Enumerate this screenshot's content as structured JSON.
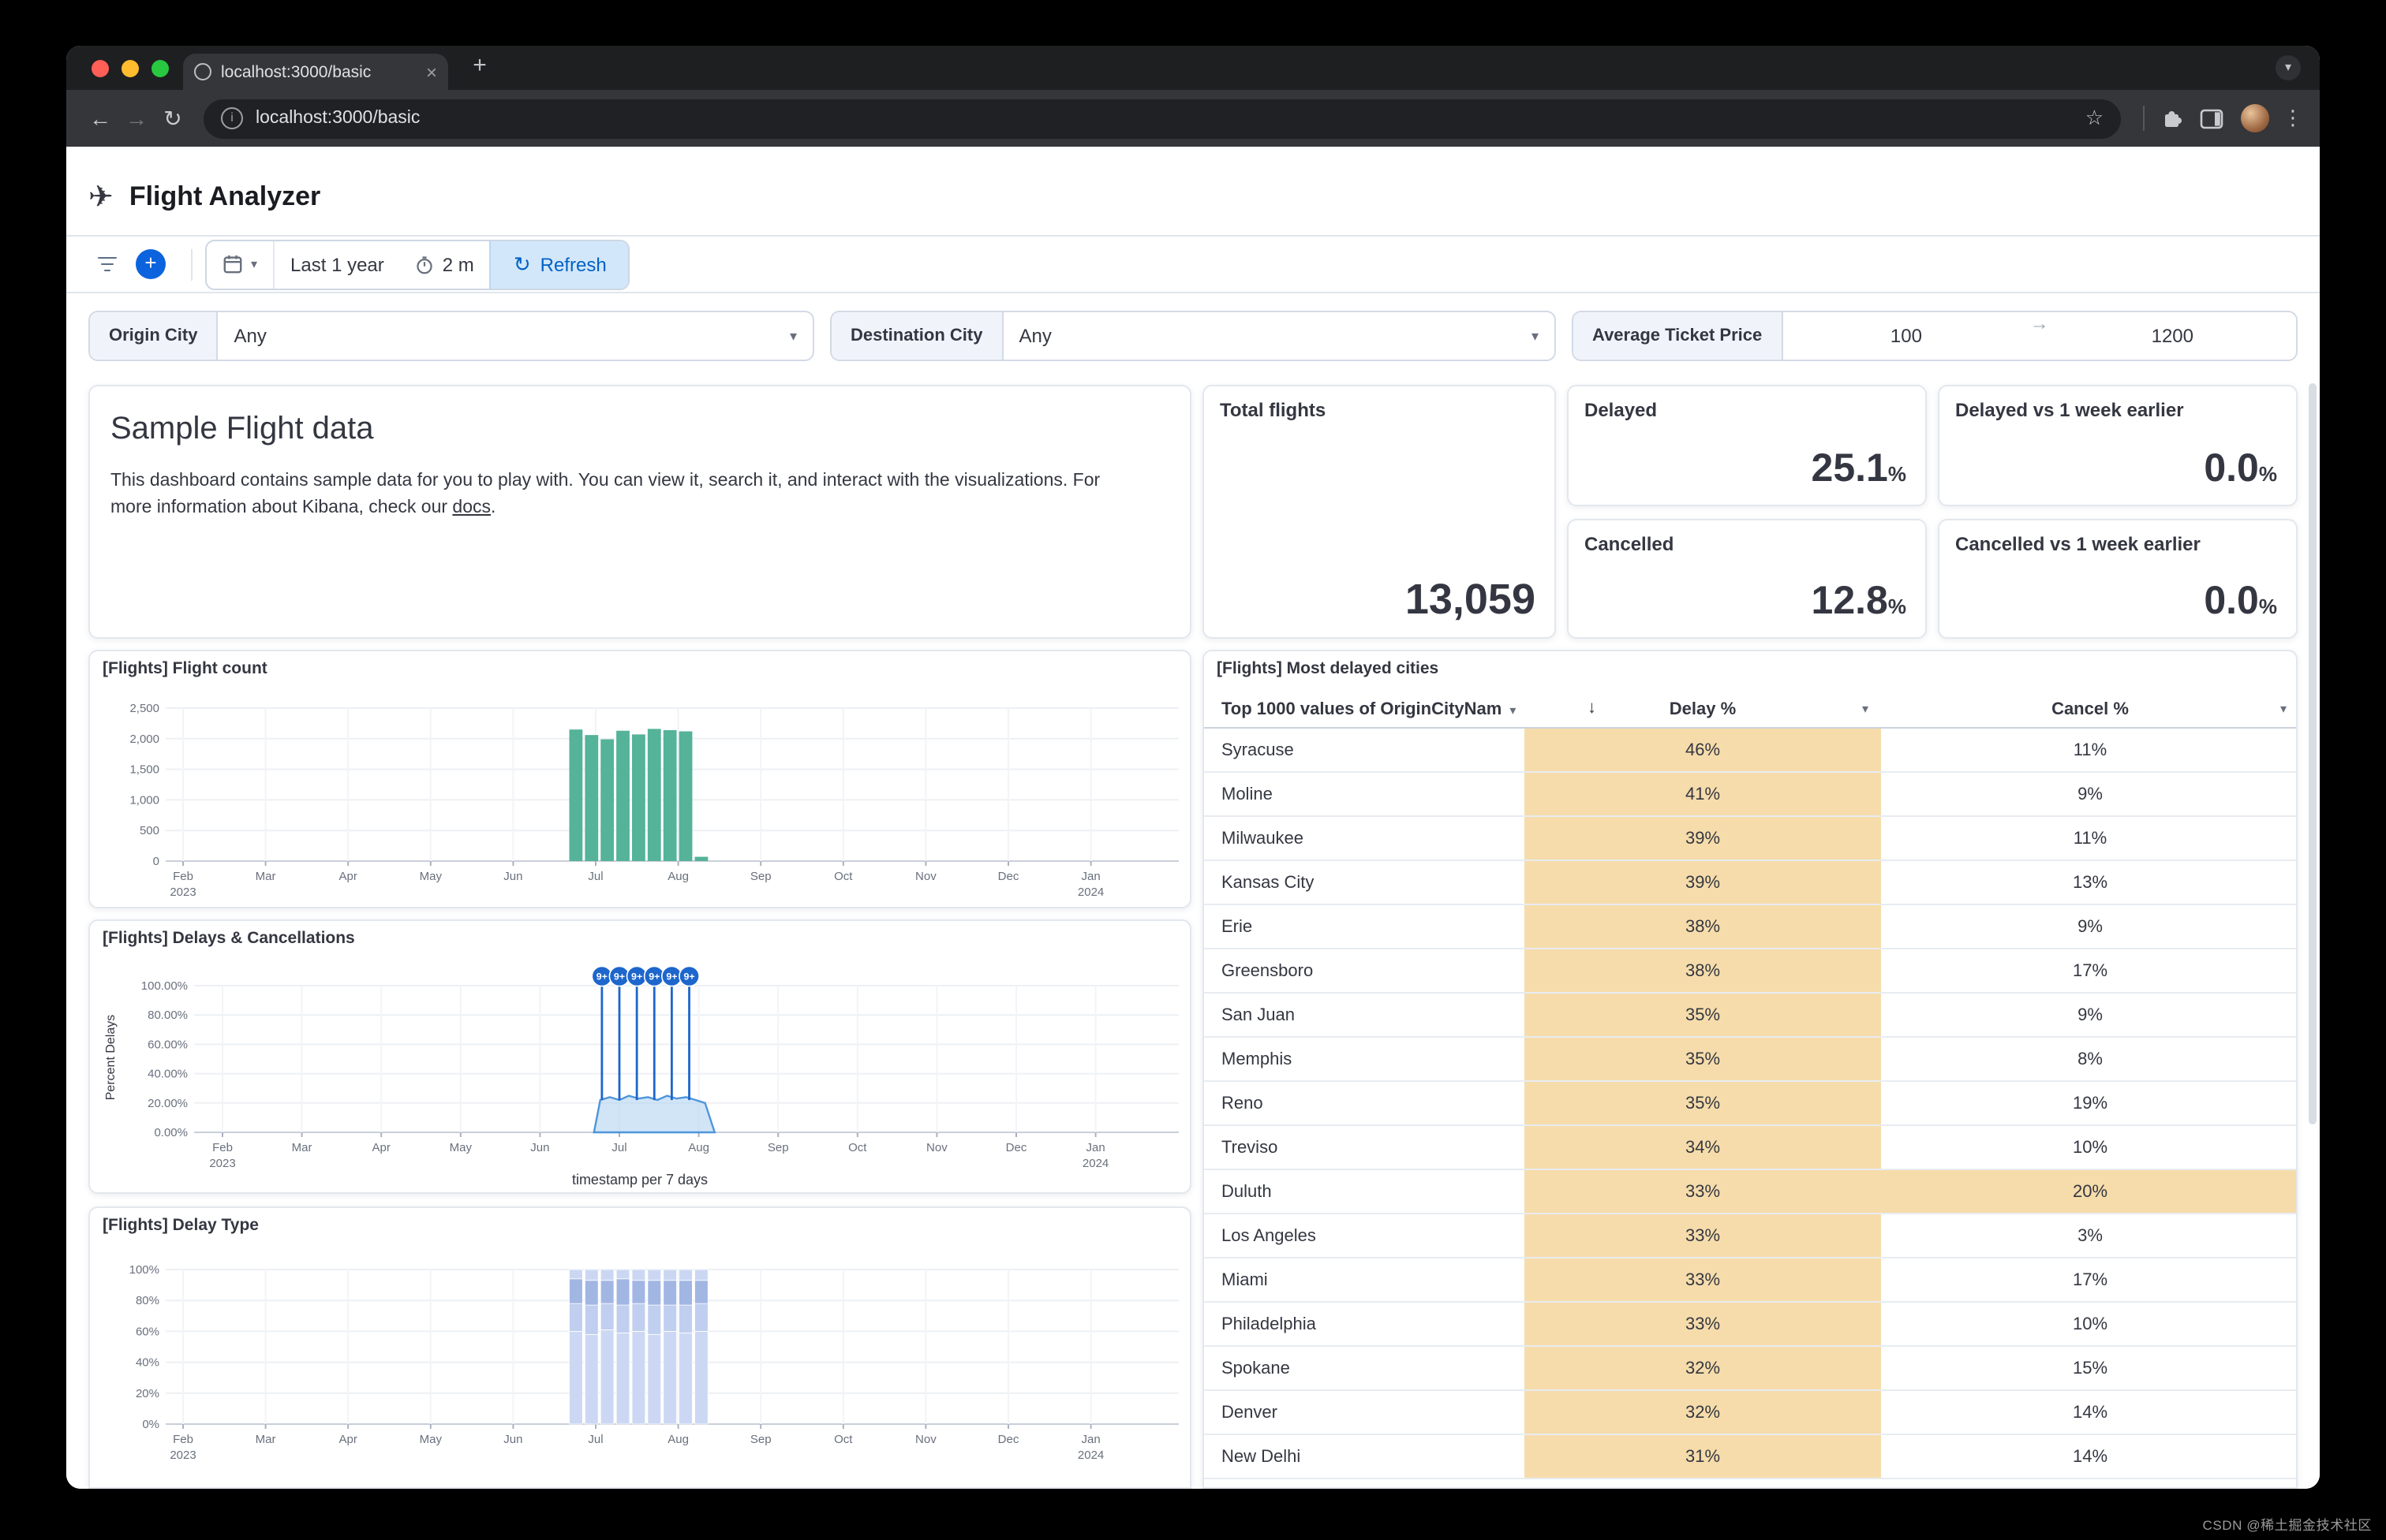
{
  "browser": {
    "tab_title": "localhost:3000/basic",
    "url": "localhost:3000/basic"
  },
  "icons": {
    "back": "←",
    "forward": "→",
    "reload": "↻",
    "star": "☆",
    "kebab": "⋮",
    "chevron_down": "▾",
    "plus": "+",
    "close": "×",
    "tab_search": "▾",
    "plane": "✈",
    "arrow_right": "→",
    "sort_down": "↓",
    "refresh_glyph": "↻",
    "info": "i"
  },
  "colors": {
    "accent_blue": "#0b64dd",
    "bar_green": "#54b399",
    "highlight_tan": "#f6dcab"
  },
  "header": {
    "title": "Flight Analyzer"
  },
  "querybar": {
    "date_range": "Last 1 year",
    "refresh_interval": "2 m",
    "refresh_label": "Refresh"
  },
  "filters": {
    "origin_label": "Origin City",
    "origin_value": "Any",
    "destination_label": "Destination City",
    "destination_value": "Any",
    "price_label": "Average Ticket Price",
    "price_min": "100",
    "price_max": "1200"
  },
  "intro": {
    "title": "Sample Flight data",
    "text_before_link": "This dashboard contains sample data for you to play with. You can view it, search it, and interact with the visualizations. For more information about Kibana, check our ",
    "link_text": "docs",
    "text_after_link": "."
  },
  "stats": {
    "total_label": "Total flights",
    "total_value": "13,059",
    "cards": [
      {
        "label": "Delayed",
        "value": "25.1",
        "suffix": "%"
      },
      {
        "label": "Delayed vs 1 week earlier",
        "value": "0.0",
        "suffix": "%"
      },
      {
        "label": "Cancelled",
        "value": "12.8",
        "suffix": "%"
      },
      {
        "label": "Cancelled vs 1 week earlier",
        "value": "0.0",
        "suffix": "%"
      }
    ]
  },
  "chart_data": [
    {
      "type": "bar",
      "title": "[Flights] Flight count",
      "x_tick_labels": [
        "Feb 2023",
        "Mar",
        "Apr",
        "May",
        "Jun",
        "Jul",
        "Aug",
        "Sep",
        "Oct",
        "Nov",
        "Dec",
        "Jan 2024"
      ],
      "ylim": [
        0,
        2500
      ],
      "y_ticks": [
        0,
        500,
        1000,
        1500,
        2000,
        2500
      ],
      "bar_color": "#54b399",
      "bars": [
        {
          "month": 4.76,
          "value": 2150
        },
        {
          "month": 4.95,
          "value": 2060
        },
        {
          "month": 5.14,
          "value": 1990
        },
        {
          "month": 5.33,
          "value": 2130
        },
        {
          "month": 5.52,
          "value": 2070
        },
        {
          "month": 5.71,
          "value": 2160
        },
        {
          "month": 5.9,
          "value": 2140
        },
        {
          "month": 6.09,
          "value": 2120
        },
        {
          "month": 6.28,
          "value": 70
        }
      ]
    },
    {
      "type": "area",
      "title": "[Flights] Delays & Cancellations",
      "ylabel": "Percent Delays",
      "xlabel": "timestamp per 7 days",
      "ylim": [
        0,
        100
      ],
      "y_tick_labels": [
        "0.00%",
        "20.00%",
        "40.00%",
        "60.00%",
        "80.00%",
        "100.00%"
      ],
      "x_tick_labels": [
        "Feb 2023",
        "Mar",
        "Apr",
        "May",
        "Jun",
        "Jul",
        "Aug",
        "Sep",
        "Oct",
        "Nov",
        "Dec",
        "Jan 2024"
      ],
      "area_fill": "#b4d4f1",
      "line_color": "#4f95da",
      "badge_color": "#1d66cc",
      "points": [
        {
          "month": 4.68,
          "value": 0
        },
        {
          "month": 4.76,
          "value": 22
        },
        {
          "month": 4.88,
          "value": 24
        },
        {
          "month": 5.0,
          "value": 22
        },
        {
          "month": 5.12,
          "value": 25
        },
        {
          "month": 5.24,
          "value": 23
        },
        {
          "month": 5.36,
          "value": 24
        },
        {
          "month": 5.48,
          "value": 22
        },
        {
          "month": 5.6,
          "value": 25
        },
        {
          "month": 5.72,
          "value": 23
        },
        {
          "month": 5.84,
          "value": 24
        },
        {
          "month": 5.96,
          "value": 22
        },
        {
          "month": 6.08,
          "value": 20
        },
        {
          "month": 6.2,
          "value": 0
        }
      ],
      "spikes": {
        "badge": "9+",
        "value": 100,
        "months": [
          4.78,
          5.0,
          5.22,
          5.44,
          5.66,
          5.88
        ]
      }
    },
    {
      "type": "stacked_bar",
      "title": "[Flights] Delay Type",
      "ylim": [
        0,
        100
      ],
      "y_tick_labels": [
        "0%",
        "20%",
        "40%",
        "60%",
        "80%",
        "100%"
      ],
      "x_tick_labels": [
        "Feb 2023",
        "Mar",
        "Apr",
        "May",
        "Jun",
        "Jul",
        "Aug",
        "Sep",
        "Oct",
        "Nov",
        "Dec",
        "Jan 2024"
      ],
      "colors": [
        "#ccd8f3",
        "#c0cfef",
        "#a2b6e3",
        "#cbd7f2"
      ],
      "bars": [
        {
          "month": 4.76,
          "segments": [
            60,
            18,
            16,
            6
          ]
        },
        {
          "month": 4.95,
          "segments": [
            58,
            19,
            16,
            7
          ]
        },
        {
          "month": 5.14,
          "segments": [
            61,
            17,
            15,
            7
          ]
        },
        {
          "month": 5.33,
          "segments": [
            59,
            18,
            17,
            6
          ]
        },
        {
          "month": 5.52,
          "segments": [
            60,
            18,
            15,
            7
          ]
        },
        {
          "month": 5.71,
          "segments": [
            58,
            19,
            16,
            7
          ]
        },
        {
          "month": 5.9,
          "segments": [
            60,
            17,
            16,
            7
          ]
        },
        {
          "month": 6.09,
          "segments": [
            59,
            18,
            16,
            7
          ]
        },
        {
          "month": 6.28,
          "segments": [
            60,
            18,
            15,
            7
          ]
        }
      ]
    },
    {
      "type": "table",
      "title": "[Flights] Most delayed cities",
      "columns": [
        "Top 1000 values of OriginCityNam",
        "Delay %",
        "Cancel %"
      ],
      "highlight_color": "#f6dcab",
      "rows": [
        {
          "city": "Syracuse",
          "delay": "46%",
          "cancel": "11%"
        },
        {
          "city": "Moline",
          "delay": "41%",
          "cancel": "9%"
        },
        {
          "city": "Milwaukee",
          "delay": "39%",
          "cancel": "11%"
        },
        {
          "city": "Kansas City",
          "delay": "39%",
          "cancel": "13%"
        },
        {
          "city": "Erie",
          "delay": "38%",
          "cancel": "9%"
        },
        {
          "city": "Greensboro",
          "delay": "38%",
          "cancel": "17%"
        },
        {
          "city": "San Juan",
          "delay": "35%",
          "cancel": "9%"
        },
        {
          "city": "Memphis",
          "delay": "35%",
          "cancel": "8%"
        },
        {
          "city": "Reno",
          "delay": "35%",
          "cancel": "19%"
        },
        {
          "city": "Treviso",
          "delay": "34%",
          "cancel": "10%"
        },
        {
          "city": "Duluth",
          "delay": "33%",
          "cancel": "20%",
          "cancel_highlight": true
        },
        {
          "city": "Los Angeles",
          "delay": "33%",
          "cancel": "3%"
        },
        {
          "city": "Miami",
          "delay": "33%",
          "cancel": "17%"
        },
        {
          "city": "Philadelphia",
          "delay": "33%",
          "cancel": "10%"
        },
        {
          "city": "Spokane",
          "delay": "32%",
          "cancel": "15%"
        },
        {
          "city": "Denver",
          "delay": "32%",
          "cancel": "14%"
        },
        {
          "city": "New Delhi",
          "delay": "31%",
          "cancel": "14%"
        }
      ]
    }
  ],
  "watermark": {
    "text": "CSDN @稀土掘金技术社区"
  }
}
